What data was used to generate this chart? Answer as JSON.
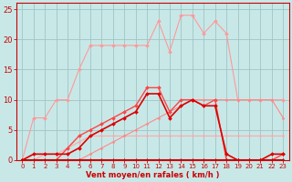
{
  "bg_color": "#c8e8e8",
  "grid_color": "#a0c4c4",
  "xlabel": "Vent moyen/en rafales ( km/h )",
  "xlim": [
    -0.5,
    23.5
  ],
  "ylim": [
    0,
    26
  ],
  "yticks": [
    0,
    5,
    10,
    15,
    20,
    25
  ],
  "xticks": [
    0,
    1,
    2,
    3,
    4,
    5,
    6,
    7,
    8,
    9,
    10,
    11,
    12,
    13,
    14,
    15,
    16,
    17,
    18,
    19,
    20,
    21,
    22,
    23
  ],
  "series": [
    {
      "x": [
        0,
        1,
        2,
        3,
        4,
        5,
        6,
        7,
        8,
        9,
        10,
        11,
        12,
        13,
        14,
        15,
        16,
        17,
        18,
        19,
        20,
        21,
        22,
        23
      ],
      "y": [
        0,
        7,
        7,
        10,
        10,
        15,
        19,
        19,
        19,
        19,
        19,
        19,
        23,
        18,
        24,
        24,
        21,
        23,
        21,
        10,
        10,
        10,
        10,
        10
      ],
      "color": "#ff9999",
      "lw": 0.8,
      "ms": 2.0,
      "marker": "D",
      "zorder": 2
    },
    {
      "x": [
        0,
        1,
        2,
        3,
        4,
        5,
        6,
        7,
        8,
        9,
        10,
        11,
        12,
        13,
        14,
        15,
        16,
        17,
        18,
        19,
        20,
        21,
        22,
        23
      ],
      "y": [
        0,
        0,
        1,
        1,
        2,
        3,
        4,
        4,
        4,
        4,
        4,
        4,
        4,
        4,
        4,
        4,
        4,
        4,
        4,
        4,
        4,
        4,
        4,
        4
      ],
      "color": "#ffaaaa",
      "lw": 0.8,
      "ms": 1.5,
      "marker": "D",
      "zorder": 2
    },
    {
      "x": [
        0,
        1,
        2,
        3,
        4,
        5,
        6,
        7,
        8,
        9,
        10,
        11,
        12,
        13,
        14,
        15,
        16,
        17,
        18,
        19,
        20,
        21,
        22,
        23
      ],
      "y": [
        0,
        0,
        0,
        0,
        0,
        0,
        1,
        2,
        3,
        4,
        5,
        6,
        7,
        8,
        9,
        10,
        10,
        10,
        10,
        10,
        10,
        10,
        10,
        7
      ],
      "color": "#ff8888",
      "lw": 0.8,
      "ms": 1.5,
      "marker": "D",
      "zorder": 2
    },
    {
      "x": [
        0,
        1,
        2,
        3,
        4,
        5,
        6,
        7,
        8,
        9,
        10,
        11,
        12,
        13,
        14,
        15,
        16,
        17,
        18,
        19,
        20,
        21,
        22,
        23
      ],
      "y": [
        0,
        0,
        0,
        0,
        2,
        4,
        5,
        6,
        7,
        8,
        9,
        12,
        12,
        8,
        10,
        10,
        9,
        10,
        0,
        0,
        0,
        0,
        0,
        1
      ],
      "color": "#ff4444",
      "lw": 1.0,
      "ms": 2.0,
      "marker": "D",
      "zorder": 3
    },
    {
      "x": [
        0,
        1,
        2,
        3,
        4,
        5,
        6,
        7,
        8,
        9,
        10,
        11,
        12,
        13,
        14,
        15,
        16,
        17,
        18,
        19,
        20,
        21,
        22,
        23
      ],
      "y": [
        0,
        1,
        1,
        1,
        1,
        2,
        4,
        5,
        6,
        7,
        8,
        11,
        11,
        7,
        9,
        10,
        9,
        9,
        1,
        0,
        0,
        0,
        1,
        1
      ],
      "color": "#dd0000",
      "lw": 1.2,
      "ms": 2.0,
      "marker": "D",
      "zorder": 4
    },
    {
      "x": [
        0,
        1,
        2,
        3,
        4,
        5,
        6,
        7,
        8,
        9,
        10,
        11,
        12,
        13,
        14,
        15,
        16,
        17,
        18,
        19,
        20,
        21,
        22,
        23
      ],
      "y": [
        0,
        0,
        0,
        0,
        0,
        0,
        0,
        0,
        0,
        0,
        0,
        0,
        0,
        0,
        0,
        0,
        0,
        0,
        0,
        0,
        0,
        0,
        0,
        0
      ],
      "color": "#cc0000",
      "lw": 1.5,
      "ms": 2.0,
      "marker": "D",
      "zorder": 5
    }
  ]
}
